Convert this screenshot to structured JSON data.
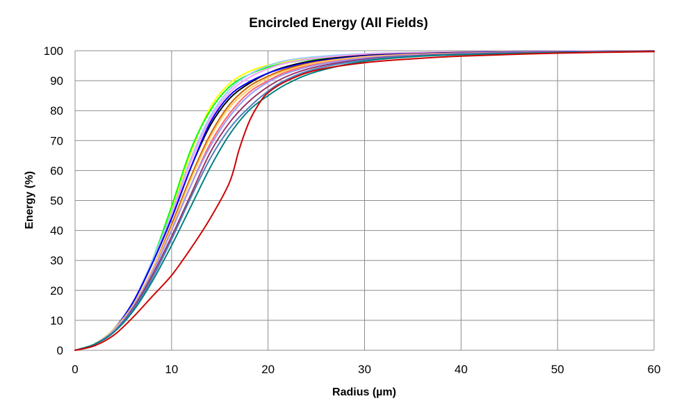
{
  "chart_data": {
    "type": "line",
    "title": "Encircled Energy (All Fields)",
    "xlabel": "Radius (µm)",
    "ylabel": "Energy (%)",
    "xlim": [
      0,
      60
    ],
    "ylim": [
      0,
      100
    ],
    "xticks": [
      0,
      10,
      20,
      30,
      40,
      50,
      60
    ],
    "yticks": [
      0,
      10,
      20,
      30,
      40,
      50,
      60,
      70,
      80,
      90,
      100
    ],
    "grid": true,
    "legend": "none",
    "series": [
      {
        "color": "#ffff00",
        "x": [
          0,
          2,
          4,
          6,
          8,
          10,
          12,
          14,
          16,
          18,
          20,
          22,
          25,
          30,
          35,
          40,
          50,
          60
        ],
        "y": [
          0,
          2,
          7,
          16,
          30,
          47,
          66,
          81,
          89,
          93,
          95.2,
          96.5,
          97.8,
          99,
          99.4,
          99.6,
          99.8,
          100
        ]
      },
      {
        "color": "#00ff00",
        "x": [
          0,
          2,
          4,
          6,
          8,
          10,
          12,
          14,
          16,
          18,
          20,
          22,
          25,
          30,
          35,
          40,
          50,
          60
        ],
        "y": [
          0,
          2,
          7,
          16,
          30,
          48,
          67,
          80,
          88,
          92,
          94.5,
          96,
          97.3,
          98.5,
          99.1,
          99.4,
          99.7,
          99.9
        ]
      },
      {
        "color": "#99ccff",
        "x": [
          0,
          2,
          4,
          6,
          8,
          10,
          12,
          14,
          16,
          18,
          20,
          22,
          25,
          30,
          35,
          40,
          50,
          60
        ],
        "y": [
          0,
          2,
          7,
          16,
          30,
          46,
          64,
          78,
          87,
          92,
          95,
          96.8,
          98,
          99,
          99.4,
          99.6,
          99.8,
          100
        ]
      },
      {
        "color": "#ff99ff",
        "x": [
          0,
          2,
          4,
          6,
          8,
          10,
          12,
          14,
          16,
          18,
          20,
          22,
          25,
          30,
          35,
          40,
          50,
          60
        ],
        "y": [
          0,
          2,
          7,
          16,
          29,
          45,
          63,
          77,
          86,
          91,
          94,
          96,
          97.5,
          98.8,
          99.3,
          99.6,
          99.8,
          100
        ]
      },
      {
        "color": "#000000",
        "x": [
          0,
          2,
          4,
          6,
          8,
          10,
          12,
          14,
          16,
          18,
          20,
          22,
          25,
          30,
          35,
          40,
          50,
          60
        ],
        "y": [
          0,
          2,
          7,
          16,
          29,
          44,
          61,
          75,
          84,
          89,
          92.5,
          94.8,
          96.8,
          98.4,
          99,
          99.4,
          99.7,
          99.9
        ]
      },
      {
        "color": "#0000ff",
        "x": [
          0,
          2,
          4,
          6,
          8,
          10,
          12,
          14,
          16,
          18,
          20,
          22,
          25,
          30,
          35,
          40,
          50,
          60
        ],
        "y": [
          0,
          2,
          7,
          16,
          29,
          44,
          61,
          76,
          85,
          89.5,
          92.5,
          94.5,
          96.5,
          98.2,
          98.9,
          99.3,
          99.7,
          99.9
        ]
      },
      {
        "color": "#cc6600",
        "x": [
          0,
          2,
          4,
          6,
          8,
          10,
          12,
          14,
          16,
          18,
          20,
          22,
          25,
          30,
          35,
          40,
          50,
          60
        ],
        "y": [
          0,
          2,
          7,
          15,
          27,
          42,
          58,
          72,
          82,
          88,
          91.5,
          94,
          96.2,
          98,
          98.8,
          99.2,
          99.6,
          99.9
        ]
      },
      {
        "color": "#ffcc66",
        "x": [
          0,
          2,
          4,
          6,
          8,
          10,
          12,
          14,
          16,
          18,
          20,
          22,
          25,
          30,
          35,
          40,
          50,
          60
        ],
        "y": [
          0,
          2,
          7,
          15,
          27,
          41,
          57,
          71,
          81,
          87,
          91,
          93.5,
          96,
          98,
          98.8,
          99.2,
          99.6,
          99.9
        ]
      },
      {
        "color": "#ff6666",
        "x": [
          0,
          2,
          4,
          6,
          8,
          10,
          12,
          14,
          16,
          18,
          20,
          22,
          25,
          30,
          35,
          40,
          50,
          60
        ],
        "y": [
          0,
          2,
          6.5,
          14.5,
          26,
          40,
          55,
          69,
          79,
          86,
          90,
          93,
          95.5,
          97.6,
          98.6,
          99.1,
          99.6,
          99.9
        ]
      },
      {
        "color": "#9999ff",
        "x": [
          0,
          2,
          4,
          6,
          8,
          10,
          12,
          14,
          16,
          18,
          20,
          22,
          25,
          30,
          35,
          40,
          50,
          60
        ],
        "y": [
          0,
          2,
          6.5,
          14.5,
          26,
          40,
          55,
          68,
          78,
          85,
          89.5,
          92.5,
          95.2,
          97.5,
          98.5,
          99,
          99.6,
          99.9
        ]
      },
      {
        "color": "#993366",
        "x": [
          0,
          2,
          4,
          6,
          8,
          10,
          12,
          14,
          16,
          18,
          20,
          22,
          25,
          30,
          35,
          40,
          50,
          60
        ],
        "y": [
          0,
          2,
          6,
          14,
          25,
          38,
          52,
          66,
          76,
          83,
          88,
          91.5,
          94.6,
          97.2,
          98.3,
          98.9,
          99.5,
          99.9
        ]
      },
      {
        "color": "#4d7fbf",
        "x": [
          0,
          2,
          4,
          6,
          8,
          10,
          12,
          14,
          16,
          18,
          20,
          22,
          25,
          30,
          35,
          40,
          50,
          60
        ],
        "y": [
          0,
          2,
          6,
          13.5,
          24,
          37,
          51,
          64,
          74,
          81,
          86.5,
          90.5,
          94,
          96.9,
          98.2,
          98.8,
          99.4,
          99.8
        ]
      },
      {
        "color": "#008080",
        "x": [
          0,
          2,
          4,
          6,
          8,
          10,
          12,
          14,
          16,
          18,
          20,
          22,
          25,
          30,
          35,
          40,
          50,
          60
        ],
        "y": [
          0,
          2,
          6,
          13,
          23,
          35,
          48,
          61,
          72,
          80,
          85,
          89,
          93,
          96.5,
          98,
          98.7,
          99.4,
          99.8
        ]
      },
      {
        "color": "#cc0000",
        "x": [
          0,
          2,
          4,
          6,
          8,
          10,
          12,
          14,
          16,
          17,
          18,
          19,
          20,
          22,
          25,
          30,
          35,
          40,
          50,
          60
        ],
        "y": [
          0,
          1.5,
          5,
          11,
          18,
          25,
          34,
          44,
          56,
          67,
          76,
          82,
          86,
          90,
          93.5,
          96,
          97.3,
          98.2,
          99.2,
          99.7
        ]
      }
    ]
  }
}
